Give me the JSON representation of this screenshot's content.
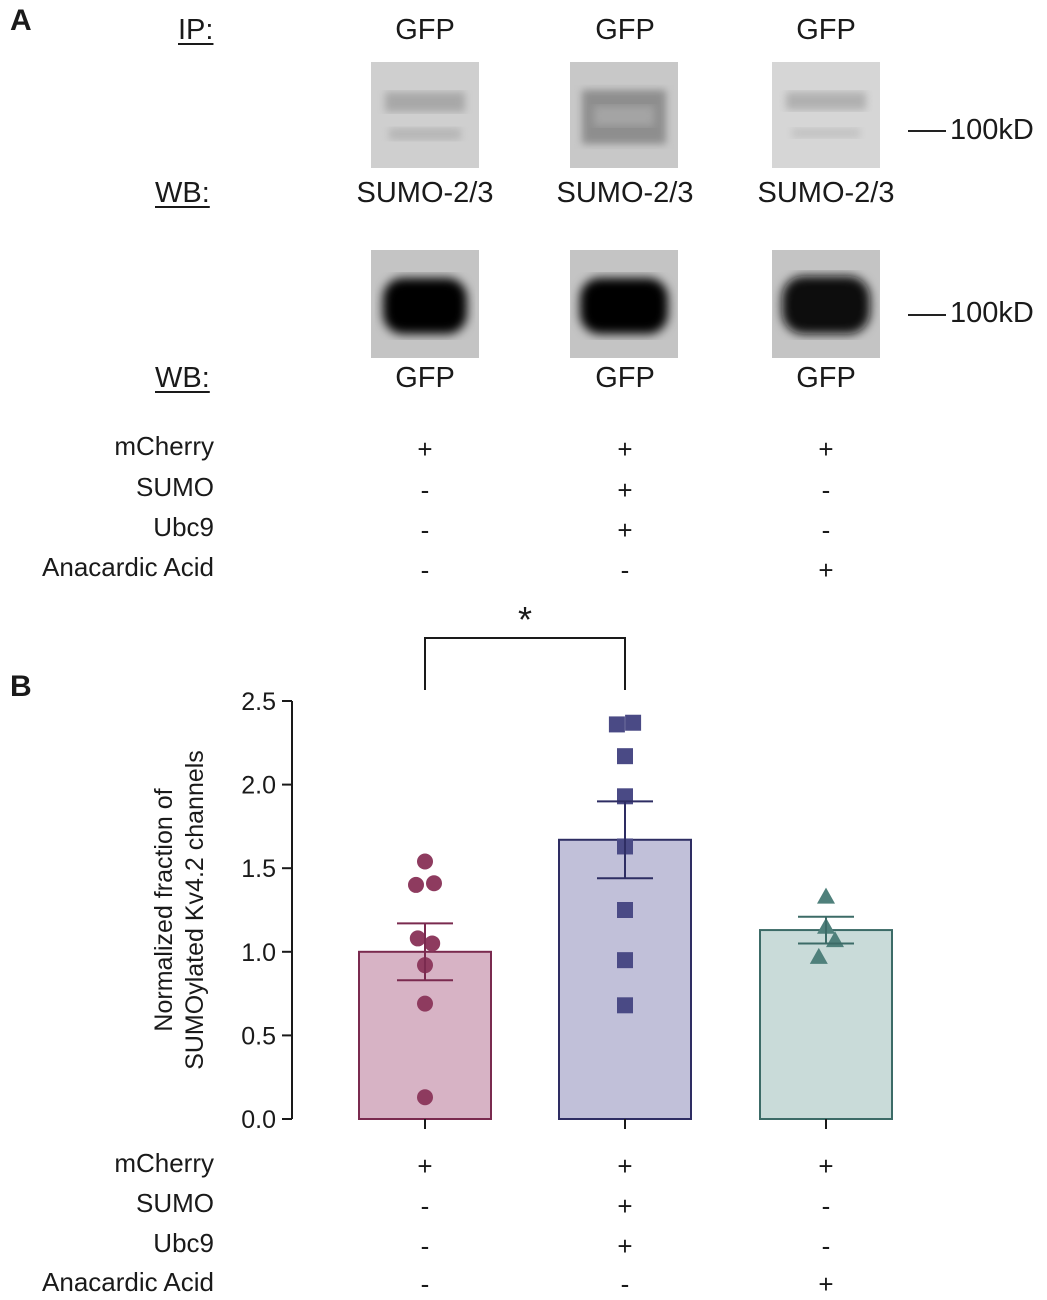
{
  "panel_a": {
    "letter": "A",
    "ip_label": "IP:",
    "wb1_label": "WB:",
    "wb2_label": "WB:",
    "ip_targets": [
      "GFP",
      "GFP",
      "GFP"
    ],
    "wb1_targets": [
      "SUMO-2/3",
      "SUMO-2/3",
      "SUMO-2/3"
    ],
    "wb2_targets": [
      "GFP",
      "GFP",
      "GFP"
    ],
    "marker_top": "100kD",
    "marker_bottom": "100kD",
    "conditions": [
      {
        "label": "mCherry",
        "signs": [
          "+",
          "+",
          "+"
        ]
      },
      {
        "label": "SUMO",
        "signs": [
          "-",
          "+",
          "-"
        ]
      },
      {
        "label": "Ubc9",
        "signs": [
          "-",
          "+",
          "-"
        ]
      },
      {
        "label": "Anacardic Acid",
        "signs": [
          "-",
          "-",
          "+"
        ]
      }
    ]
  },
  "panel_b": {
    "letter": "B",
    "significance": "*",
    "conditions": [
      {
        "label": "mCherry",
        "signs": [
          "+",
          "+",
          "+"
        ]
      },
      {
        "label": "SUMO",
        "signs": [
          "-",
          "+",
          "-"
        ]
      },
      {
        "label": "Ubc9",
        "signs": [
          "-",
          "+",
          "-"
        ]
      },
      {
        "label": "Anacardic Acid",
        "signs": [
          "-",
          "-",
          "+"
        ]
      }
    ]
  },
  "chart_data": {
    "type": "bar",
    "ylabel_line1": "Normalized fraction of",
    "ylabel_line2": "SUMOylated Kv4.2 channels",
    "ylim": [
      0,
      2.5
    ],
    "yticks": [
      0.0,
      0.5,
      1.0,
      1.5,
      2.0,
      2.5
    ],
    "ytick_labels": [
      "0.0",
      "0.5",
      "1.0",
      "1.5",
      "2.0",
      "2.5"
    ],
    "groups": [
      {
        "name": "mCherry",
        "mean": 1.0,
        "sem": 0.17,
        "marker": "circle",
        "fill": "#d7b3c5",
        "stroke": "#7a2a4f",
        "point_color": "#8e3b5f",
        "points": [
          {
            "y": 1.54,
            "o": 0
          },
          {
            "y": 1.4,
            "o": -0.5
          },
          {
            "y": 1.41,
            "o": 0.5
          },
          {
            "y": 1.08,
            "o": -0.4
          },
          {
            "y": 1.05,
            "o": 0.4
          },
          {
            "y": 0.92,
            "o": 0
          },
          {
            "y": 0.69,
            "o": 0
          },
          {
            "y": 0.13,
            "o": 0
          }
        ]
      },
      {
        "name": "SUMO + Ubc9",
        "mean": 1.67,
        "sem": 0.23,
        "marker": "square",
        "fill": "#c1c0d9",
        "stroke": "#2e2d63",
        "point_color": "#4a4a85",
        "points": [
          {
            "y": 2.36,
            "o": -0.45
          },
          {
            "y": 2.37,
            "o": 0.45
          },
          {
            "y": 2.17,
            "o": 0
          },
          {
            "y": 1.93,
            "o": 0
          },
          {
            "y": 1.63,
            "o": 0
          },
          {
            "y": 1.25,
            "o": 0
          },
          {
            "y": 0.95,
            "o": 0
          },
          {
            "y": 0.68,
            "o": 0
          }
        ]
      },
      {
        "name": "Anacardic Acid",
        "mean": 1.13,
        "sem": 0.08,
        "marker": "triangle",
        "fill": "#c9dbd9",
        "stroke": "#3c6b67",
        "point_color": "#4f807b",
        "points": [
          {
            "y": 1.33,
            "o": 0
          },
          {
            "y": 1.15,
            "o": 0
          },
          {
            "y": 1.07,
            "o": 0.5
          },
          {
            "y": 0.97,
            "o": -0.4
          }
        ]
      }
    ]
  }
}
